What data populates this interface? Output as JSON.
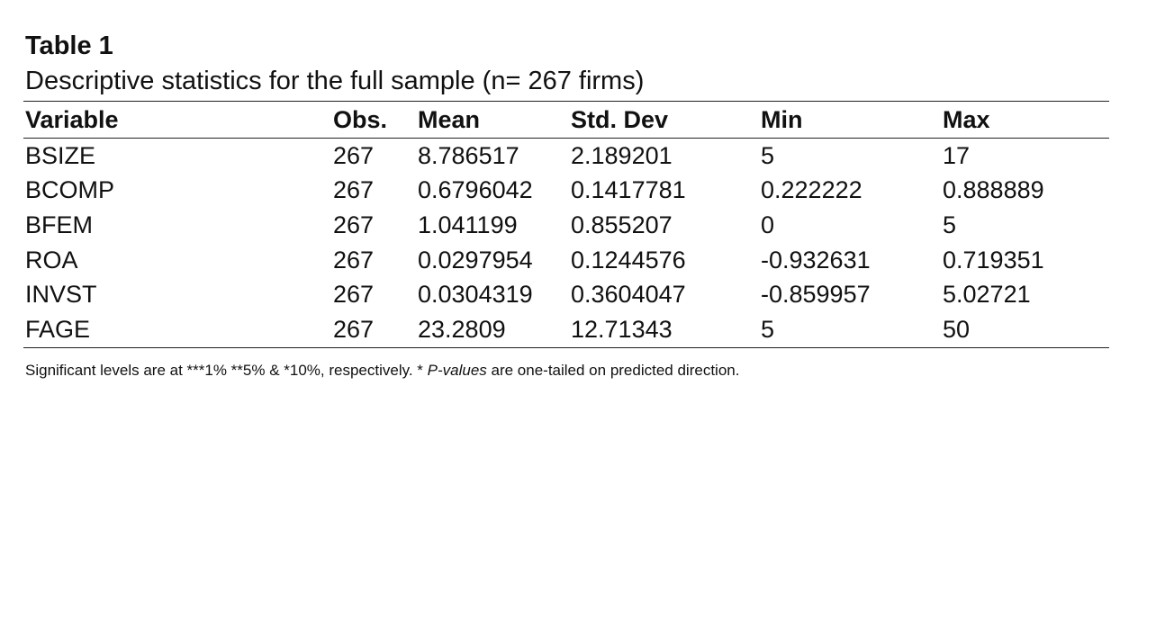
{
  "table": {
    "label": "Table 1",
    "caption": "Descriptive statistics for the full sample (n= 267 firms)",
    "columns": [
      "Variable",
      "Obs.",
      "Mean",
      "Std. Dev",
      "Min",
      "Max"
    ],
    "rows": [
      [
        "BSIZE",
        "267",
        "8.786517",
        "2.189201",
        "5",
        "17"
      ],
      [
        "BCOMP",
        "267",
        "0.6796042",
        "0.1417781",
        "0.222222",
        "0.888889"
      ],
      [
        "BFEM",
        "267",
        "1.041199",
        "0.855207",
        "0",
        "5"
      ],
      [
        "ROA",
        "267",
        "0.0297954",
        "0.1244576",
        "-0.932631",
        "0.719351"
      ],
      [
        "INVST",
        "267",
        "0.0304319",
        "0.3604047",
        "-0.859957",
        "5.02721"
      ],
      [
        "FAGE",
        "267",
        "23.2809",
        "12.71343",
        "5",
        "50"
      ]
    ],
    "note": {
      "before": "Significant levels are at ***1% **5% & *10%, respectively. * ",
      "italic": "P-values",
      "after": " are one-tailed on predicted direction."
    }
  }
}
